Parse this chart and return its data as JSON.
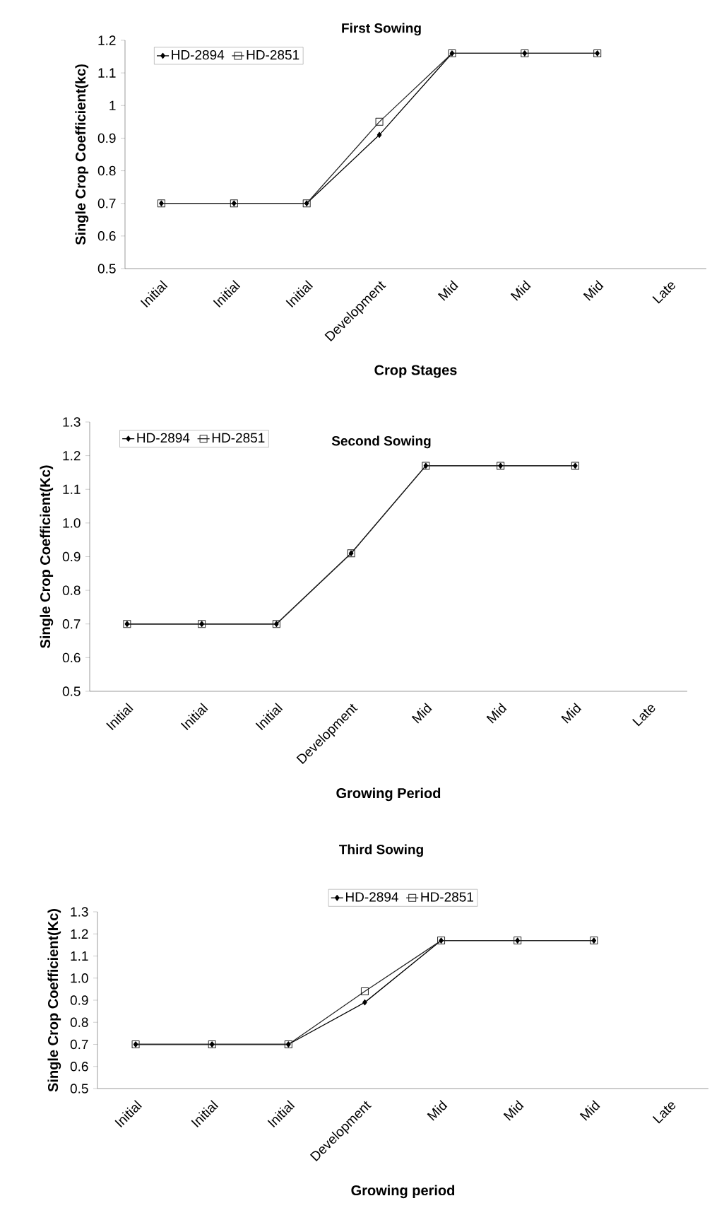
{
  "chart_data": [
    {
      "type": "line",
      "title": "First Sowing",
      "xlabel": "Crop Stages",
      "ylabel": "Single Crop Coefficient(kc)",
      "categories": [
        "Initial",
        "Initial",
        "Initial",
        "Development",
        "Mid",
        "Mid",
        "Mid",
        "Late"
      ],
      "ylim": [
        0.5,
        1.2
      ],
      "yticks": [
        0.5,
        0.6,
        0.7,
        0.8,
        0.9,
        1,
        1.1,
        1.2
      ],
      "legend": "top left",
      "grid": false,
      "line_style": "solid",
      "series": [
        {
          "name": "HD-2894",
          "color": "#000000",
          "marker": "diamond",
          "values": [
            0.7,
            0.7,
            0.7,
            0.91,
            1.16,
            1.16,
            1.16,
            null
          ]
        },
        {
          "name": "HD-2851",
          "color": "#262626",
          "marker": "square",
          "values": [
            0.7,
            0.7,
            0.7,
            0.95,
            1.16,
            1.16,
            1.16,
            null
          ]
        }
      ]
    },
    {
      "type": "line",
      "title": "Second Sowing",
      "xlabel": "Growing Period",
      "ylabel": "Single Crop Coefficient(Kc)",
      "categories": [
        "Initial",
        "Initial",
        "Initial",
        "Development",
        "Mid",
        "Mid",
        "Mid",
        "Late"
      ],
      "ylim": [
        0.5,
        1.3
      ],
      "yticks": [
        0.5,
        0.6,
        0.7,
        0.8,
        0.9,
        {
          "value": 1.0,
          "label": "1.0"
        },
        1.1,
        1.2,
        1.3
      ],
      "legend": "top left",
      "grid": false,
      "line_style": "solid",
      "series": [
        {
          "name": "HD-2894",
          "color": "#000000",
          "marker": "diamond",
          "values": [
            0.7,
            0.7,
            0.7,
            0.91,
            1.17,
            1.17,
            1.17,
            null
          ]
        },
        {
          "name": "HD-2851",
          "color": "#262626",
          "marker": "square",
          "values": [
            0.7,
            0.7,
            0.7,
            0.91,
            1.17,
            1.17,
            1.17,
            null
          ]
        }
      ]
    },
    {
      "type": "line",
      "title": "Third Sowing",
      "xlabel": "Growing period",
      "ylabel": "Single Crop Coefficient(Kc)",
      "categories": [
        "Initial",
        "Initial",
        "Initial",
        "Development",
        "Mid",
        "Mid",
        "Mid",
        "Late"
      ],
      "ylim": [
        0.5,
        1.3
      ],
      "yticks": [
        0.5,
        0.6,
        0.7,
        0.8,
        0.9,
        {
          "value": 1.0,
          "label": "1.0"
        },
        1.1,
        1.2,
        1.3
      ],
      "legend": "top",
      "grid": false,
      "line_style": "solid",
      "series": [
        {
          "name": "HD-2894",
          "color": "#000000",
          "marker": "diamond",
          "values": [
            0.7,
            0.7,
            0.7,
            0.89,
            1.17,
            1.17,
            1.17,
            null
          ]
        },
        {
          "name": "HD-2851",
          "color": "#262626",
          "marker": "square",
          "values": [
            0.7,
            0.7,
            0.7,
            0.94,
            1.17,
            1.17,
            1.17,
            null
          ]
        }
      ]
    }
  ]
}
